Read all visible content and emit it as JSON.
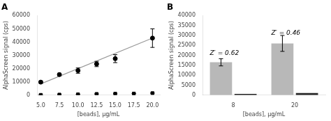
{
  "chart_data": [
    {
      "type": "scatter",
      "title": "A",
      "xlabel": "[beads], μg/mL",
      "ylabel": "AlphaScreen signal (cps)",
      "xlim": [
        4.5,
        21.0
      ],
      "xticks": [
        {
          "value": 5.0,
          "label": "5.0"
        },
        7.5,
        {
          "value": 10.0,
          "label": "10.0"
        },
        12.5,
        {
          "value": 15.0,
          "label": "15.0"
        },
        17.5,
        {
          "value": 20.0,
          "label": "20.0"
        }
      ],
      "ylim": [
        0,
        60000
      ],
      "yticks": [
        0,
        10000,
        20000,
        30000,
        40000,
        50000,
        60000
      ],
      "grid": false,
      "series": [
        {
          "type": "line",
          "color": "#999999",
          "marker": "none",
          "x": [
            5.0,
            20.0
          ],
          "values": [
            8500,
            43000
          ]
        },
        {
          "type": "scatter",
          "color": "#000000",
          "marker": "circle",
          "x": [
            5.0,
            7.5,
            10.0,
            12.5,
            15.0,
            20.0
          ],
          "values": [
            9800,
            15500,
            18500,
            23500,
            27500,
            43000
          ],
          "yerr": [
            800,
            1000,
            2000,
            2000,
            3000,
            7000
          ]
        },
        {
          "type": "scatter",
          "color": "#000000",
          "marker": "square",
          "x": [
            5.0,
            7.5,
            10.0,
            12.5,
            15.0,
            17.5,
            20.0
          ],
          "values": [
            200,
            400,
            600,
            900,
            1100,
            1200,
            1500
          ],
          "yerr": [
            100,
            100,
            100,
            100,
            100,
            100,
            150
          ]
        }
      ]
    },
    {
      "type": "bar",
      "title": "B",
      "xlabel": "[beads], μg/mL",
      "ylabel": "AlphaScreen signal (cps)",
      "categories": [
        "8",
        "20"
      ],
      "ylim": [
        0,
        40000
      ],
      "yticks": [
        0,
        5000,
        10000,
        15000,
        20000,
        25000,
        30000,
        35000,
        40000
      ],
      "grid": false,
      "series": [
        {
          "color": "#b8b8b8",
          "values": [
            16500,
            26000
          ],
          "yerr": [
            1800,
            4000
          ]
        },
        {
          "color": "#2a2a2a",
          "values": [
            650,
            1100
          ]
        }
      ],
      "annotations": [
        {
          "text": "Z′ = 0.62",
          "category": "8",
          "y": 19500
        },
        {
          "text": "Z′ = 0.46",
          "category": "20",
          "y": 29500
        }
      ]
    }
  ]
}
